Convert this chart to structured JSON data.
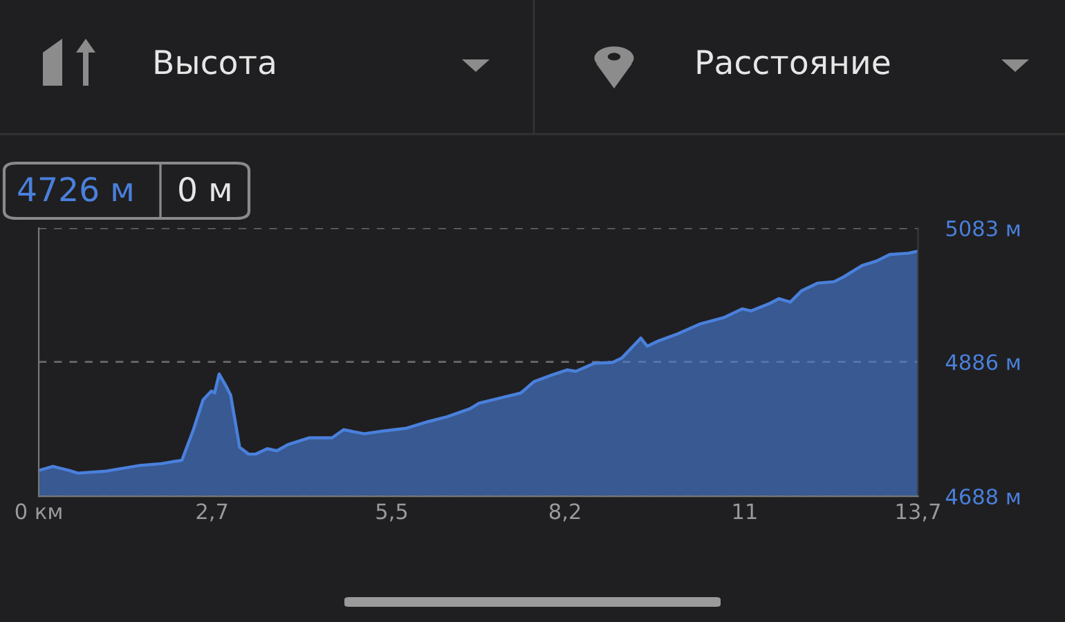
{
  "chart_data": {
    "type": "area",
    "annotations": [
      "Высота",
      "Расстояние",
      "4726 м",
      "0 м"
    ],
    "x": [
      0,
      0.22,
      0.47,
      0.61,
      1.05,
      1.55,
      1.91,
      2.23,
      2.41,
      2.56,
      2.69,
      2.74,
      2.81,
      2.92,
      2.99,
      3.13,
      3.27,
      3.38,
      3.56,
      3.71,
      3.88,
      4.21,
      4.57,
      4.75,
      5.07,
      5.36,
      5.72,
      6.07,
      6.36,
      6.72,
      6.86,
      7.29,
      7.51,
      7.72,
      8.01,
      8.23,
      8.37,
      8.66,
      8.94,
      9.09,
      9.38,
      9.48,
      9.66,
      9.95,
      10.31,
      10.67,
      10.96,
      11.1,
      11.39,
      11.53,
      11.71,
      11.89,
      12.14,
      12.39,
      12.54,
      12.83,
      13.04,
      13.26,
      13.55,
      13.7
    ],
    "series": [
      {
        "color": "#4a80dc",
        "values": [
          4726,
          4732,
          4726,
          4722,
          4725,
          4733,
          4736,
          4741,
          4786,
          4830,
          4843,
          4840,
          4868,
          4850,
          4837,
          4760,
          4750,
          4750,
          4758,
          4755,
          4764,
          4774,
          4774,
          4786,
          4780,
          4784,
          4788,
          4798,
          4805,
          4817,
          4825,
          4835,
          4840,
          4857,
          4867,
          4874,
          4872,
          4884,
          4885,
          4892,
          4921,
          4909,
          4917,
          4927,
          4942,
          4951,
          4964,
          4961,
          4972,
          4979,
          4974,
          4991,
          5002,
          5004,
          5011,
          5028,
          5034,
          5044,
          5046,
          5049
        ]
      }
    ],
    "xlim": [
      0,
      13.7
    ],
    "xticks": [
      {
        "value": 0,
        "label": "0 км"
      },
      {
        "value": 2.7,
        "label": "2,7"
      },
      {
        "value": 5.5,
        "label": "5,5"
      },
      {
        "value": 8.2,
        "label": "8,2"
      },
      {
        "value": 11,
        "label": "11"
      },
      {
        "value": 13.7,
        "label": "13,7"
      }
    ],
    "ylim": [
      4688,
      5083
    ],
    "yticks": [
      {
        "value": 4688,
        "label": "4688 м"
      },
      {
        "value": 4886,
        "label": "4886 м"
      },
      {
        "value": 5083,
        "label": "5083 м"
      }
    ],
    "grid": "y",
    "legend": false
  }
}
